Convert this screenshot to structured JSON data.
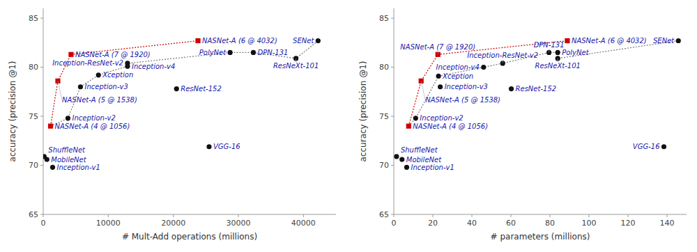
{
  "chart_data": [
    {
      "type": "scatter",
      "x_label": "# Mult-Add operations (millions)",
      "y_label": "accuracy (precision @1)",
      "xlim": [
        0,
        45000
      ],
      "ylim": [
        65,
        86
      ],
      "xticks": [
        0,
        10000,
        20000,
        30000,
        40000
      ],
      "yticks": [
        65,
        70,
        75,
        80,
        85
      ],
      "grid": false,
      "series": [
        {
          "type": "line",
          "color": "#777777",
          "line_style": "dotted",
          "x": [
            1128,
            3800,
            5727,
            8490,
            12960,
            12960,
            28730,
            32300,
            38850,
            42250
          ],
          "values": [
            74.0,
            74.8,
            78.0,
            79.2,
            80.1,
            80.4,
            81.5,
            81.5,
            80.9,
            82.7
          ]
        },
        {
          "type": "line",
          "color": "#cc0000",
          "line_style": "dotted",
          "x": [
            1128,
            2250,
            4280,
            23790
          ],
          "values": [
            74.0,
            78.6,
            81.3,
            82.7
          ]
        },
        {
          "type": "scatter",
          "color": "#111111",
          "marker": "circle",
          "x": [
            140,
            569,
            1448,
            3800,
            5727,
            8490,
            12960,
            12960,
            20490,
            28730,
            32300,
            38850,
            42250,
            25500
          ],
          "values": [
            70.9,
            70.6,
            69.8,
            74.8,
            78.0,
            79.2,
            80.1,
            80.4,
            77.8,
            81.5,
            81.5,
            80.9,
            82.7,
            71.9
          ],
          "labels": [
            "ShuffleNet",
            "MobileNet",
            "Inception-v1",
            "Inception-v2",
            "Inception-v3",
            "Xception",
            "Inception-v4",
            "Inception-ResNet-v2",
            "ResNet-152",
            "PolyNet",
            "DPN-131",
            "ResNeXt-101",
            "SENet",
            "VGG-16"
          ]
        },
        {
          "type": "scatter",
          "color": "#cc0000",
          "marker": "square",
          "x": [
            1128,
            2250,
            4280,
            23790
          ],
          "values": [
            74.0,
            78.6,
            81.3,
            82.7
          ],
          "labels": [
            "NASNet-A (4 @ 1056)",
            "NASNet-A (5 @ 1538)",
            "NASNet-A (7 @ 1920)",
            "NASNet-A (6 @ 4032)"
          ]
        }
      ]
    },
    {
      "type": "scatter",
      "x_label": "# parameters (millions)",
      "y_label": "accuracy (precision @1)",
      "xlim": [
        0,
        150
      ],
      "ylim": [
        65,
        86
      ],
      "xticks": [
        0,
        20,
        40,
        60,
        80,
        100,
        120,
        140
      ],
      "yticks": [
        65,
        70,
        75,
        80,
        85
      ],
      "grid": false,
      "series": [
        {
          "type": "line",
          "color": "#777777",
          "line_style": "dotted",
          "x": [
            7.6,
            11.2,
            22.9,
            46.0,
            55.8,
            79.5,
            84.0,
            84.0,
            145.8
          ],
          "values": [
            74.0,
            74.8,
            79.1,
            80.0,
            80.4,
            81.5,
            81.5,
            80.9,
            82.7
          ]
        },
        {
          "type": "line",
          "color": "#cc0000",
          "line_style": "dotted",
          "x": [
            7.6,
            14.0,
            22.6,
            88.9
          ],
          "values": [
            74.0,
            78.6,
            81.3,
            82.7
          ]
        },
        {
          "type": "scatter",
          "color": "#111111",
          "marker": "circle",
          "x": [
            1.4,
            4.2,
            6.6,
            11.2,
            23.8,
            22.9,
            46.0,
            55.8,
            60.2,
            84.0,
            79.5,
            84.0,
            145.8,
            138.4
          ],
          "values": [
            70.9,
            70.6,
            69.8,
            74.8,
            78.0,
            79.1,
            80.0,
            80.4,
            77.8,
            81.5,
            81.5,
            80.9,
            82.7,
            71.9
          ],
          "labels": [
            "ShuffleNet",
            "MobileNet",
            "Inception-v1",
            "Inception-v2",
            "Inception-v3",
            "Xception",
            "Inception-v4",
            "Inception-ResNet-v2",
            "ResNet-152",
            "PolyNet",
            "DPN-131",
            "ResNeXt-101",
            "SENet",
            "VGG-16"
          ]
        },
        {
          "type": "scatter",
          "color": "#cc0000",
          "marker": "square",
          "x": [
            7.6,
            14.0,
            22.6,
            88.9
          ],
          "values": [
            74.0,
            78.6,
            81.3,
            82.7
          ],
          "labels": [
            "NASNet-A (4 @ 1056)",
            "NASNet-A (5 @ 1538)",
            "NASNet-A (7 @ 1920)",
            "NASNet-A (6 @ 4032)"
          ]
        }
      ]
    }
  ]
}
